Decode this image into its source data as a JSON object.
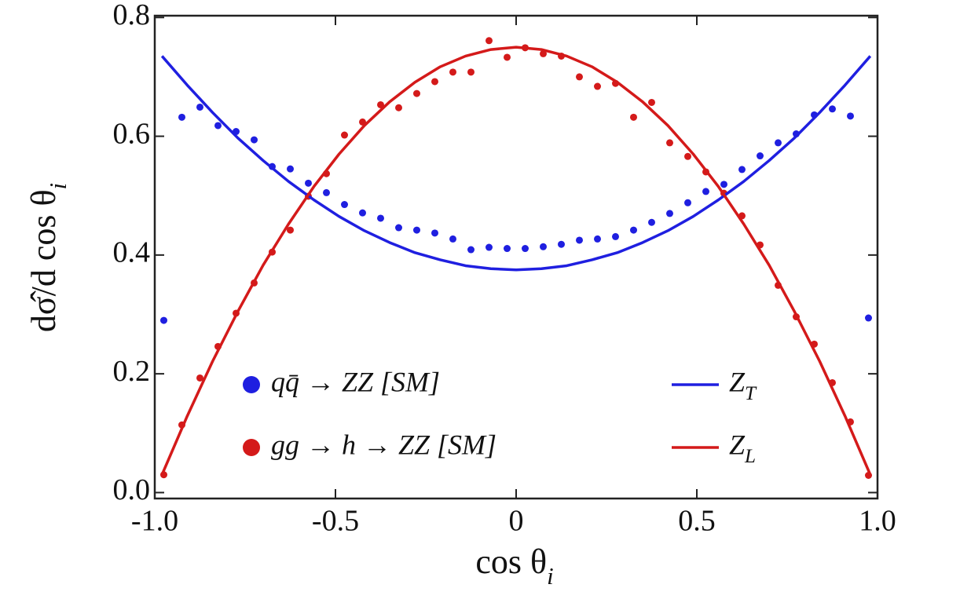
{
  "chart_data": {
    "type": "scatter",
    "xlabel": "cos θi",
    "ylabel": "dσ̂/d cos θi",
    "xlim": [
      -1,
      1
    ],
    "ylim": [
      -0.01,
      0.803
    ],
    "xticks": [
      {
        "value": -1,
        "label": "-1.0"
      },
      -0.5,
      0,
      0.5,
      {
        "value": 1,
        "label": "1.0"
      }
    ],
    "yticks": [
      {
        "value": 0,
        "label": "0.0"
      },
      0.2,
      0.4,
      0.6,
      0.8
    ],
    "series": [
      {
        "name": "qq̄ → ZZ [SM]",
        "type": "scatter",
        "color": "#1f1fe0",
        "x": [
          -0.975,
          -0.925,
          -0.875,
          -0.825,
          -0.775,
          -0.725,
          -0.675,
          -0.625,
          -0.575,
          -0.525,
          -0.475,
          -0.425,
          -0.375,
          -0.325,
          -0.275,
          -0.225,
          -0.175,
          -0.125,
          -0.075,
          -0.025,
          0.025,
          0.075,
          0.125,
          0.175,
          0.225,
          0.275,
          0.325,
          0.375,
          0.425,
          0.475,
          0.525,
          0.575,
          0.625,
          0.675,
          0.725,
          0.775,
          0.825,
          0.875,
          0.925,
          0.975
        ],
        "values": [
          0.29,
          0.632,
          0.649,
          0.618,
          0.608,
          0.594,
          0.549,
          0.545,
          0.521,
          0.505,
          0.485,
          0.471,
          0.462,
          0.446,
          0.442,
          0.437,
          0.427,
          0.409,
          0.413,
          0.411,
          0.411,
          0.414,
          0.418,
          0.425,
          0.427,
          0.431,
          0.442,
          0.455,
          0.47,
          0.488,
          0.507,
          0.519,
          0.544,
          0.567,
          0.589,
          0.604,
          0.636,
          0.646,
          0.634,
          0.294
        ]
      },
      {
        "name": "gg → h → ZZ [SM]",
        "type": "scatter",
        "color": "#d41a1a",
        "x": [
          -0.975,
          -0.925,
          -0.875,
          -0.825,
          -0.775,
          -0.725,
          -0.675,
          -0.625,
          -0.575,
          -0.525,
          -0.475,
          -0.425,
          -0.375,
          -0.325,
          -0.275,
          -0.225,
          -0.175,
          -0.125,
          -0.075,
          -0.025,
          0.025,
          0.075,
          0.125,
          0.175,
          0.225,
          0.275,
          0.325,
          0.375,
          0.425,
          0.475,
          0.525,
          0.575,
          0.625,
          0.675,
          0.725,
          0.775,
          0.825,
          0.875,
          0.925,
          0.975
        ],
        "values": [
          0.03,
          0.114,
          0.193,
          0.246,
          0.302,
          0.353,
          0.405,
          0.442,
          0.499,
          0.537,
          0.602,
          0.624,
          0.653,
          0.648,
          0.672,
          0.692,
          0.708,
          0.708,
          0.761,
          0.733,
          0.749,
          0.739,
          0.735,
          0.7,
          0.684,
          0.689,
          0.632,
          0.657,
          0.589,
          0.566,
          0.54,
          0.504,
          0.466,
          0.417,
          0.349,
          0.296,
          0.25,
          0.185,
          0.119,
          0.029
        ]
      },
      {
        "name": "ZT",
        "type": "line",
        "color": "#1f1fe0",
        "x": [
          -0.98,
          -0.91,
          -0.84,
          -0.77,
          -0.7,
          -0.63,
          -0.56,
          -0.49,
          -0.42,
          -0.35,
          -0.28,
          -0.21,
          -0.14,
          -0.07,
          0,
          0.07,
          0.14,
          0.21,
          0.28,
          0.35,
          0.42,
          0.49,
          0.56,
          0.63,
          0.7,
          0.77,
          0.84,
          0.91,
          0.98
        ],
        "values": [
          0.735,
          0.686,
          0.64,
          0.597,
          0.559,
          0.524,
          0.493,
          0.465,
          0.441,
          0.421,
          0.404,
          0.392,
          0.382,
          0.377,
          0.375,
          0.377,
          0.382,
          0.392,
          0.404,
          0.421,
          0.441,
          0.465,
          0.493,
          0.524,
          0.559,
          0.597,
          0.64,
          0.686,
          0.735
        ]
      },
      {
        "name": "ZL",
        "type": "line",
        "color": "#d41a1a",
        "x": [
          -0.98,
          -0.91,
          -0.84,
          -0.77,
          -0.7,
          -0.63,
          -0.56,
          -0.49,
          -0.42,
          -0.35,
          -0.28,
          -0.21,
          -0.14,
          -0.07,
          0,
          0.07,
          0.14,
          0.21,
          0.28,
          0.35,
          0.42,
          0.49,
          0.56,
          0.63,
          0.7,
          0.77,
          0.84,
          0.91,
          0.98
        ],
        "values": [
          0.03,
          0.129,
          0.221,
          0.305,
          0.383,
          0.452,
          0.515,
          0.57,
          0.618,
          0.658,
          0.691,
          0.717,
          0.735,
          0.746,
          0.75,
          0.746,
          0.735,
          0.717,
          0.691,
          0.658,
          0.618,
          0.57,
          0.515,
          0.452,
          0.383,
          0.305,
          0.221,
          0.129,
          0.03
        ]
      }
    ]
  }
}
